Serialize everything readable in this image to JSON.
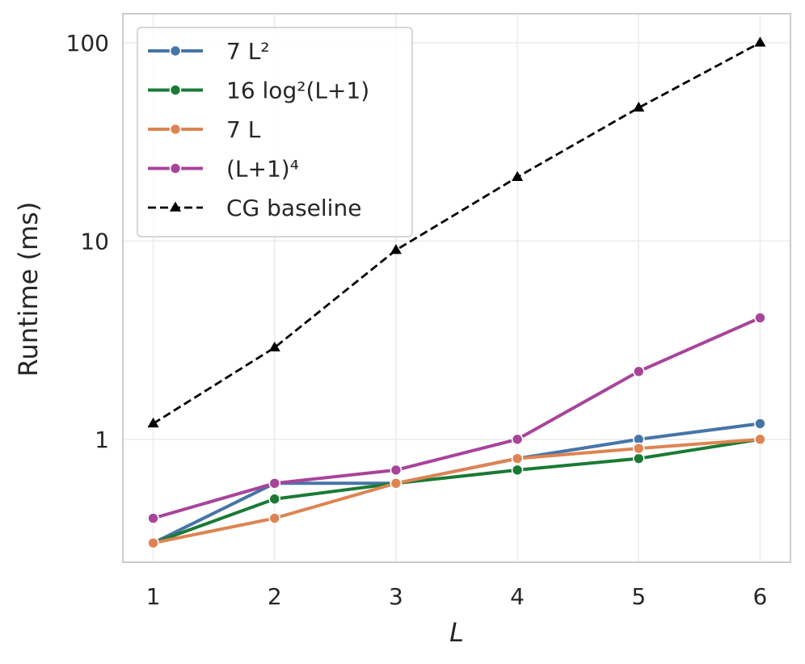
{
  "chart_data": {
    "type": "line",
    "xlabel": "L",
    "ylabel": "Runtime (ms)",
    "x": [
      1,
      2,
      3,
      4,
      5,
      6
    ],
    "xlim": [
      0.75,
      6.25
    ],
    "ylim": [
      0.24,
      140
    ],
    "yscale": "log",
    "yticks": [
      1,
      10,
      100
    ],
    "ytick_labels": [
      "1",
      "10",
      "100"
    ],
    "xtick_labels": [
      "1",
      "2",
      "3",
      "4",
      "5",
      "6"
    ],
    "grid": true,
    "legend_position": "top-left",
    "series": [
      {
        "name": "7 L²",
        "color": "#4675a8",
        "marker": "circle",
        "linestyle": "solid",
        "values": [
          0.3,
          0.6,
          0.6,
          0.8,
          1.0,
          1.2
        ]
      },
      {
        "name": "16 log²(L+1)",
        "color": "#1a7a35",
        "marker": "circle",
        "linestyle": "solid",
        "values": [
          0.3,
          0.5,
          0.6,
          0.7,
          0.8,
          1.0
        ]
      },
      {
        "name": "7 L",
        "color": "#de8452",
        "marker": "circle",
        "linestyle": "solid",
        "values": [
          0.3,
          0.4,
          0.6,
          0.8,
          0.9,
          1.0
        ]
      },
      {
        "name": "(L+1)⁴",
        "color": "#a8449a",
        "marker": "circle",
        "linestyle": "solid",
        "values": [
          0.4,
          0.6,
          0.7,
          1.0,
          2.2,
          4.1
        ]
      },
      {
        "name": "CG baseline",
        "color": "#000000",
        "marker": "triangle",
        "linestyle": "dashed",
        "values": [
          1.2,
          2.9,
          9.0,
          21.0,
          47.0,
          100.0
        ]
      }
    ]
  }
}
